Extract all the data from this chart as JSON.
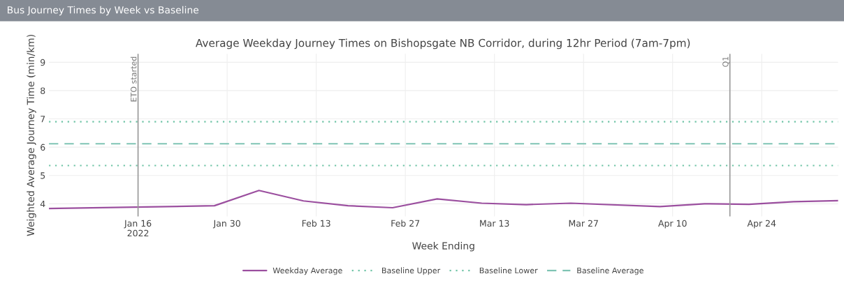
{
  "chart_data": {
    "type": "line",
    "title": "Bus Journey Times by Week vs Baseline",
    "subtitle": "Average Weekday Journey Times on Bishopsgate NB Corridor, during 12hr Period (7am-7pm)",
    "xlabel": "Week Ending",
    "ylabel": "Weighted Average Journey Time (min/km)",
    "x": [
      "2022-01-02",
      "2022-01-28",
      "2022-02-04",
      "2022-02-11",
      "2022-02-18",
      "2022-02-25",
      "2022-03-04",
      "2022-03-11",
      "2022-03-18",
      "2022-03-25",
      "2022-04-08",
      "2022-04-15",
      "2022-04-22",
      "2022-04-29",
      "2022-05-06"
    ],
    "series": [
      {
        "name": "Weekday Average",
        "color": "#9b4f9f",
        "line_style": "solid",
        "values": [
          3.83,
          3.93,
          4.47,
          4.1,
          3.93,
          3.86,
          4.17,
          4.02,
          3.97,
          4.02,
          3.9,
          4.0,
          3.98,
          4.07,
          4.11
        ]
      },
      {
        "name": "Baseline Upper",
        "color": "#6fc4a6",
        "line_style": "dotted",
        "x": [
          "2022-01-02",
          "2022-05-06"
        ],
        "values": [
          6.9,
          6.9
        ]
      },
      {
        "name": "Baseline Lower",
        "color": "#6fc4a6",
        "line_style": "dotted",
        "x": [
          "2022-01-02",
          "2022-05-06"
        ],
        "values": [
          5.35,
          5.35
        ]
      },
      {
        "name": "Baseline Average",
        "color": "#7fc4b4",
        "line_style": "dashed",
        "x": [
          "2022-01-02",
          "2022-05-06"
        ],
        "values": [
          6.12,
          6.12
        ]
      }
    ],
    "xlim": [
      "2022-01-02",
      "2022-05-06"
    ],
    "xticks": [
      {
        "value": "2022-01-16",
        "label": "Jan 16\n2022"
      },
      {
        "value": "2022-01-30",
        "label": "Jan 30"
      },
      {
        "value": "2022-02-13",
        "label": "Feb 13"
      },
      {
        "value": "2022-02-27",
        "label": "Feb 27"
      },
      {
        "value": "2022-03-13",
        "label": "Mar 13"
      },
      {
        "value": "2022-03-27",
        "label": "Mar 27"
      },
      {
        "value": "2022-04-10",
        "label": "Apr 10"
      },
      {
        "value": "2022-04-24",
        "label": "Apr 24"
      }
    ],
    "ylim": [
      3.55,
      9.3
    ],
    "yticks": [
      4,
      5,
      6,
      7,
      8,
      9
    ],
    "ref_lines": [
      {
        "axis": "x",
        "value": "2022-01-16",
        "label": "ETO started",
        "color": "#999999"
      },
      {
        "axis": "x",
        "value": "2022-04-19",
        "label": "Q1",
        "color": "#999999"
      }
    ],
    "grid": true,
    "legend": "bottom",
    "marker": "none"
  }
}
